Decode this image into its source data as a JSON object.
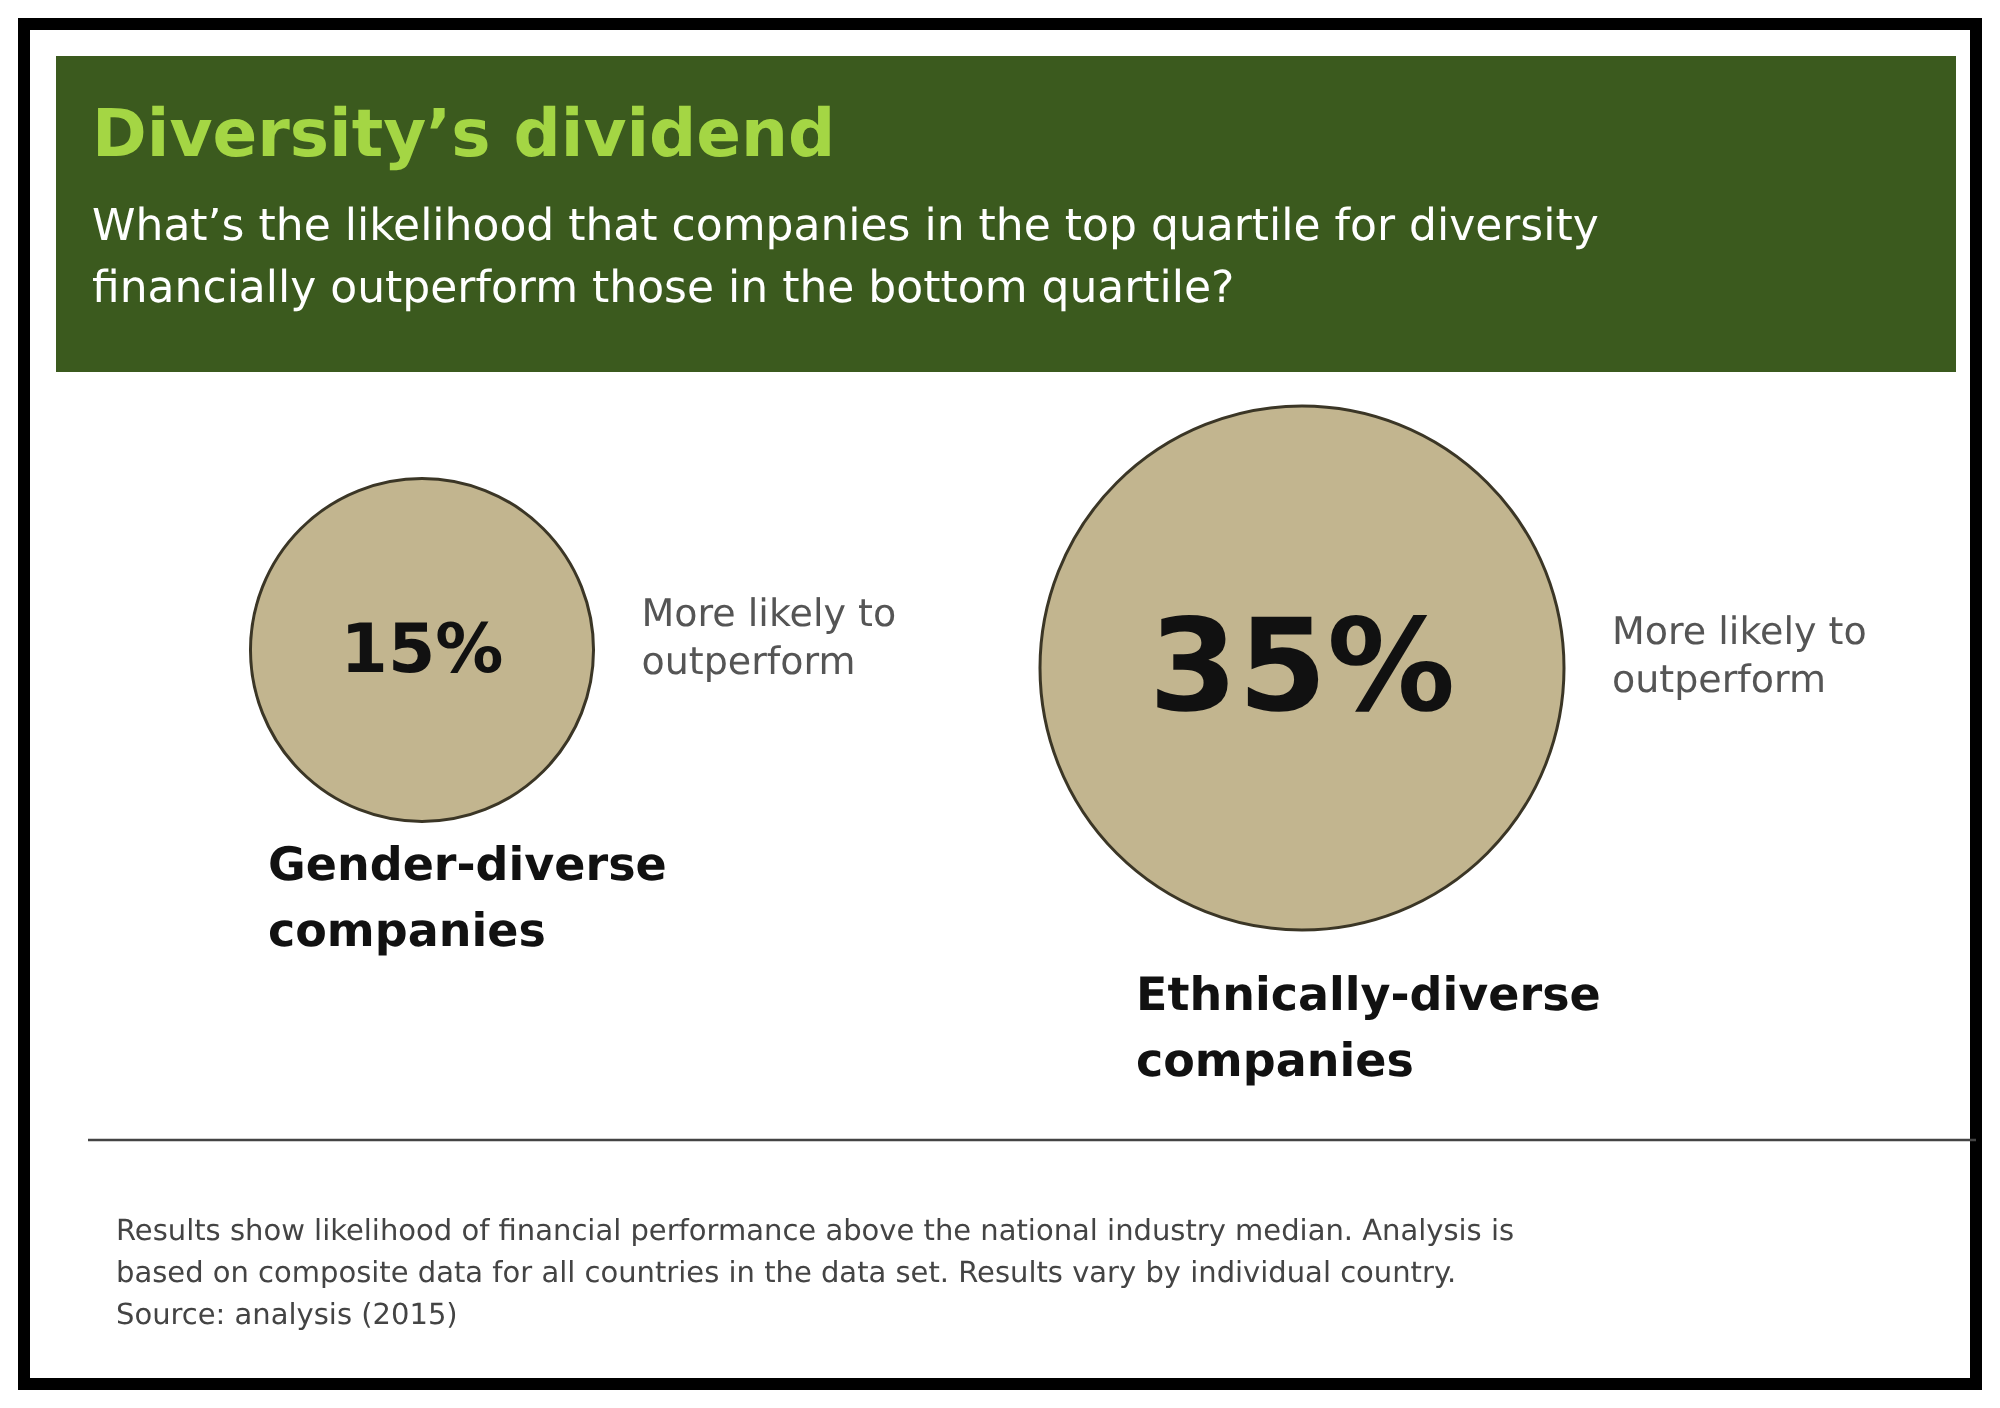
{
  "chart_data": {
    "type": "other",
    "title": "Diversity’s dividend",
    "subtitle": "What’s the likelihood that companies in the top quartile for diversity financially outperform those in the bottom quartile?",
    "categories": [
      "Gender-diverse companies",
      "Ethnically-diverse companies"
    ],
    "values": [
      15,
      35
    ],
    "value_labels": [
      "15%",
      "35%"
    ],
    "color": "#c2b58f",
    "annotations": [
      {
        "text": "More likely to outperform",
        "x": "Gender-diverse companies"
      },
      {
        "text": "More likely to outperform",
        "x": "Ethnically-diverse companies"
      },
      "Results show likelihood of financial performance above the national industry median. Analysis is based on composite data for all countries in the data set. Results vary by individual country.",
      "Source: analysis (2015)"
    ]
  }
}
